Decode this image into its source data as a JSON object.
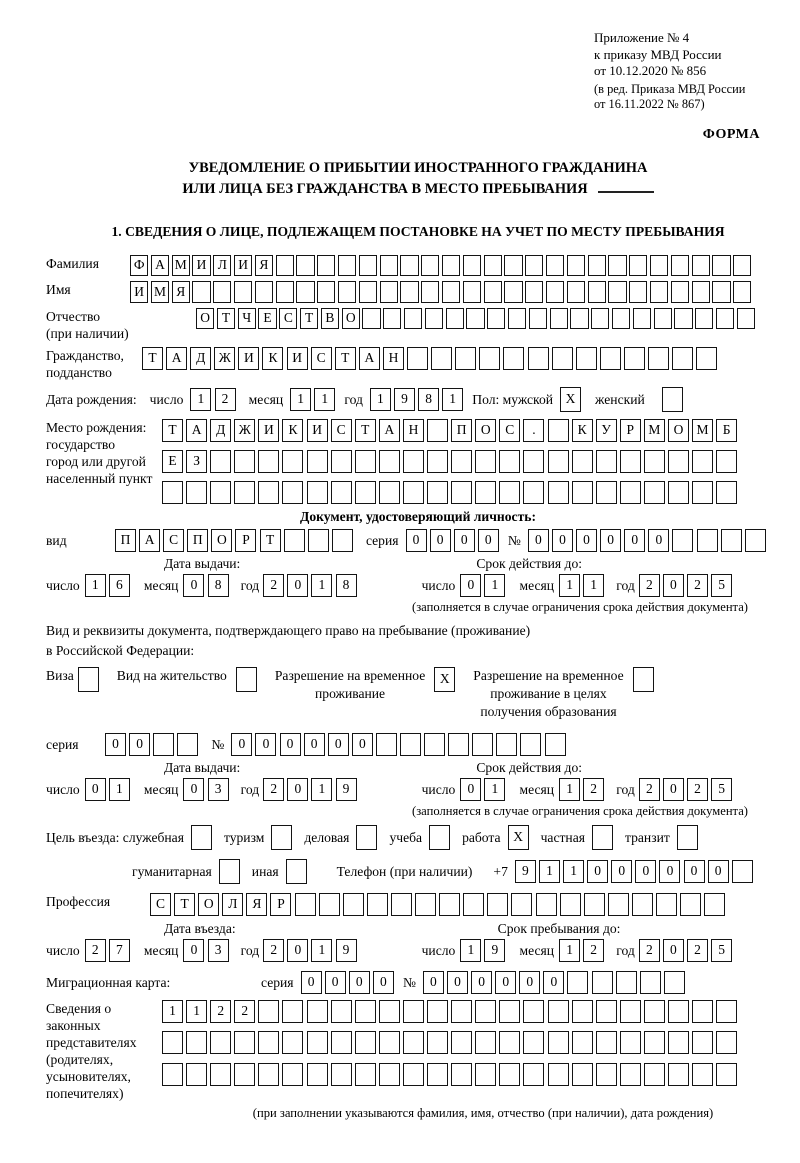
{
  "header": {
    "ref_lines": "Приложение № 4\nк приказу МВД России\nот 10.12.2020 № 856",
    "ref_lines_small": "(в ред. Приказа МВД России\nот 16.11.2022 № 867)",
    "forma": "ФОРМА"
  },
  "title": {
    "line1": "УВЕДОМЛЕНИЕ О ПРИБЫТИИ ИНОСТРАННОГО ГРАЖДАНИНА",
    "line2": "ИЛИ ЛИЦА БЕЗ ГРАЖДАНСТВА В МЕСТО ПРЕБЫВАНИЯ"
  },
  "section1_title": "1. СВЕДЕНИЯ О ЛИЦЕ, ПОДЛЕЖАЩЕМ ПОСТАНОВКЕ НА УЧЕТ ПО МЕСТУ ПРЕБЫВАНИЯ",
  "labels": {
    "surname": "Фамилия",
    "name": "Имя",
    "patronymic": "Отчество\n(при наличии)",
    "citizenship": "Гражданство,\nподданство",
    "birth_date": "Дата рождения:",
    "day": "число",
    "month": "месяц",
    "year": "год",
    "sex_male": "Пол: мужской",
    "sex_female": "женский",
    "birth_place": "Место рождения:\nгосударство\nгород или другой\nнаселенный пункт",
    "id_doc_header": "Документ, удостоверяющий личность:",
    "doc_type": "вид",
    "series": "серия",
    "number": "№",
    "issue_date": "Дата выдачи:",
    "valid_until": "Срок действия до:",
    "validity_note": "(заполняется в случае ограничения срока действия документа)",
    "right_doc_line1": "Вид и реквизиты документа, подтверждающего право на пребывание (проживание)",
    "right_doc_line2": "в Российской Федерации:",
    "visa": "Виза",
    "residence_permit": "Вид на жительство",
    "temp_permit": "Разрешение на временное\nпроживание",
    "temp_permit_edu": "Разрешение на временное\nпроживание в целях\nполучения образования",
    "purpose": "Цель въезда: служебная",
    "tourism": "туризм",
    "business": "деловая",
    "study": "учеба",
    "work": "работа",
    "private": "частная",
    "transit": "транзит",
    "humanitarian": "гуманитарная",
    "other": "иная",
    "phone": "Телефон (при наличии)",
    "phone_prefix": "+7",
    "profession": "Профессия",
    "entry_date": "Дата въезда:",
    "stay_until": "Срок пребывания до:",
    "migration_card": "Миграционная карта:",
    "representatives": "Сведения о\nзаконных\nпредставителях\n(родителях,\nусыновителях,\nпопечителях)",
    "bottom_note": "(при заполнении указываются фамилия, имя, отчество (при наличии), дата рождения)"
  },
  "fields": {
    "surname": {
      "value": "ФАМИЛИЯ",
      "len": 30
    },
    "name": {
      "value": "ИМЯ",
      "len": 30
    },
    "patronymic": {
      "value": "ОТЧЕСТВО",
      "len": 27
    },
    "citizenship": {
      "value": "ТАДЖИКИСТАН",
      "len": 24
    },
    "birth": {
      "day": {
        "value": "12",
        "len": 2
      },
      "month": {
        "value": "11",
        "len": 2
      },
      "year": {
        "value": "1981",
        "len": 4
      }
    },
    "sex_male": {
      "value": "X",
      "len": 1
    },
    "sex_female": {
      "value": "",
      "len": 1
    },
    "birthplace_row1": {
      "value": "ТАДЖИКИСТАН ПОС. КУРМОМБ",
      "len": 24
    },
    "birthplace_row2": {
      "value": "ЕЗ",
      "len": 24
    },
    "birthplace_row3": {
      "value": "",
      "len": 24
    },
    "doc_type": {
      "value": "ПАСПОРТ",
      "len": 10
    },
    "doc_series": {
      "value": "0000",
      "len": 4
    },
    "doc_number": {
      "value": "000000",
      "len": 10
    },
    "doc_issue": {
      "day": {
        "value": "16",
        "len": 2
      },
      "month": {
        "value": "08",
        "len": 2
      },
      "year": {
        "value": "2018",
        "len": 4
      }
    },
    "doc_valid": {
      "day": {
        "value": "01",
        "len": 2
      },
      "month": {
        "value": "11",
        "len": 2
      },
      "year": {
        "value": "2025",
        "len": 4
      }
    },
    "visa": {
      "value": "",
      "len": 1
    },
    "residence_permit": {
      "value": "",
      "len": 1
    },
    "temp_permit": {
      "value": "X",
      "len": 1
    },
    "temp_permit_edu": {
      "value": "",
      "len": 1
    },
    "permit_series": {
      "value": "00",
      "len": 4
    },
    "permit_number": {
      "value": "000000",
      "len": 14
    },
    "permit_issue": {
      "day": {
        "value": "01",
        "len": 2
      },
      "month": {
        "value": "03",
        "len": 2
      },
      "year": {
        "value": "2019",
        "len": 4
      }
    },
    "permit_valid": {
      "day": {
        "value": "01",
        "len": 2
      },
      "month": {
        "value": "12",
        "len": 2
      },
      "year": {
        "value": "2025",
        "len": 4
      }
    },
    "purpose_official": {
      "value": "",
      "len": 1
    },
    "purpose_tourism": {
      "value": "",
      "len": 1
    },
    "purpose_business": {
      "value": "",
      "len": 1
    },
    "purpose_study": {
      "value": "",
      "len": 1
    },
    "purpose_work": {
      "value": "X",
      "len": 1
    },
    "purpose_private": {
      "value": "",
      "len": 1
    },
    "purpose_transit": {
      "value": "",
      "len": 1
    },
    "purpose_humanitarian": {
      "value": "",
      "len": 1
    },
    "purpose_other": {
      "value": "",
      "len": 1
    },
    "phone": {
      "value": "911000000",
      "len": 10
    },
    "profession": {
      "value": "СТОЛЯР",
      "len": 24
    },
    "entry": {
      "day": {
        "value": "27",
        "len": 2
      },
      "month": {
        "value": "03",
        "len": 2
      },
      "year": {
        "value": "2019",
        "len": 4
      }
    },
    "stay": {
      "day": {
        "value": "19",
        "len": 2
      },
      "month": {
        "value": "12",
        "len": 2
      },
      "year": {
        "value": "2025",
        "len": 4
      }
    },
    "mig_series": {
      "value": "0000",
      "len": 4
    },
    "mig_number": {
      "value": "000000",
      "len": 11
    },
    "rep_row1": {
      "value": "1122",
      "len": 24
    },
    "rep_row2": {
      "value": "",
      "len": 24
    },
    "rep_row3": {
      "value": "",
      "len": 24
    }
  }
}
